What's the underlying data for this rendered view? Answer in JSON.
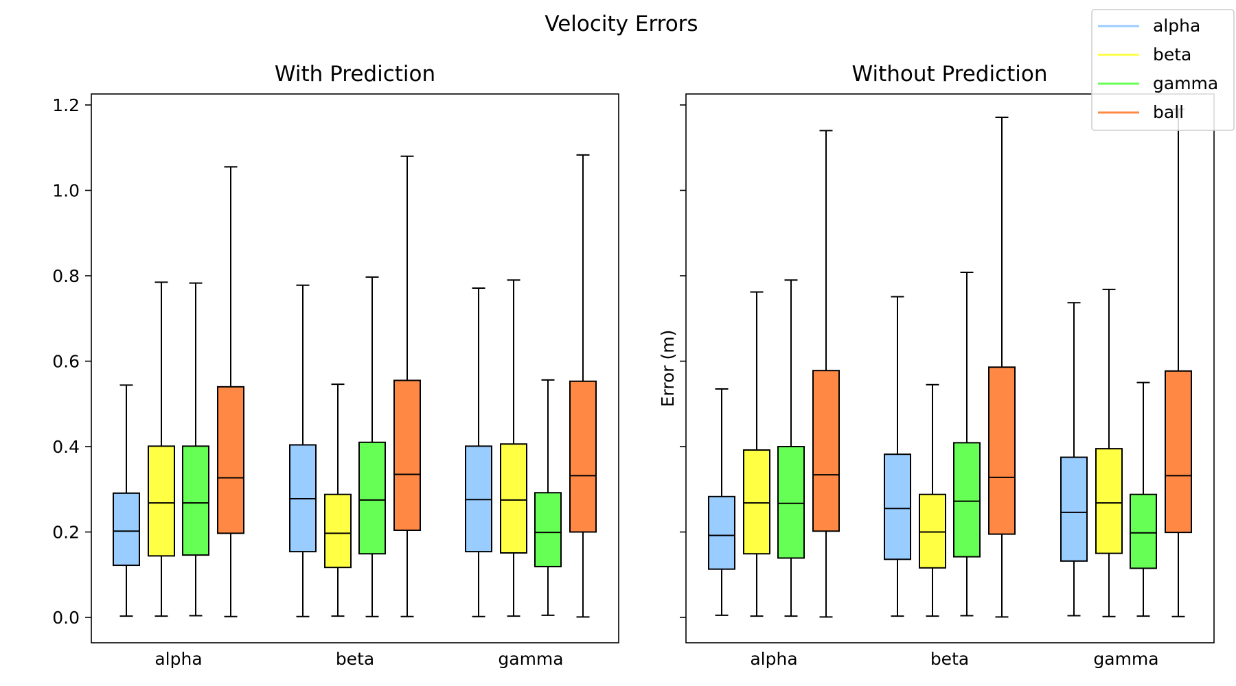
{
  "chart_data": {
    "type": "boxplot",
    "title": "Velocity Errors",
    "ylabel": "Error (m)",
    "ylim": [
      -0.06,
      1.23
    ],
    "yticks": [
      "0.0",
      "0.2",
      "0.4",
      "0.6",
      "0.8",
      "1.0",
      "1.2"
    ],
    "ytick_values": [
      0.0,
      0.2,
      0.4,
      0.6,
      0.8,
      1.0,
      1.2
    ],
    "grid": false,
    "legend_position": "top-right",
    "series": [
      {
        "name": "alpha",
        "color": "#99ccff"
      },
      {
        "name": "beta",
        "color": "#ffff44"
      },
      {
        "name": "gamma",
        "color": "#66ff55"
      },
      {
        "name": "ball",
        "color": "#ff8844"
      }
    ],
    "panels": [
      {
        "title": "With Prediction",
        "categories": [
          "alpha",
          "beta",
          "gamma"
        ],
        "groups": [
          {
            "category": "alpha",
            "boxes": [
              {
                "series": "alpha",
                "whislo": 0.003,
                "q1": 0.122,
                "med": 0.202,
                "q3": 0.291,
                "whishi": 0.544
              },
              {
                "series": "beta",
                "whislo": 0.003,
                "q1": 0.144,
                "med": 0.268,
                "q3": 0.401,
                "whishi": 0.785
              },
              {
                "series": "gamma",
                "whislo": 0.004,
                "q1": 0.146,
                "med": 0.268,
                "q3": 0.401,
                "whishi": 0.783
              },
              {
                "series": "ball",
                "whislo": 0.002,
                "q1": 0.197,
                "med": 0.327,
                "q3": 0.54,
                "whishi": 1.055
              }
            ]
          },
          {
            "category": "beta",
            "boxes": [
              {
                "series": "alpha",
                "whislo": 0.002,
                "q1": 0.154,
                "med": 0.278,
                "q3": 0.404,
                "whishi": 0.778
              },
              {
                "series": "beta",
                "whislo": 0.003,
                "q1": 0.117,
                "med": 0.197,
                "q3": 0.288,
                "whishi": 0.546
              },
              {
                "series": "gamma",
                "whislo": 0.002,
                "q1": 0.149,
                "med": 0.275,
                "q3": 0.41,
                "whishi": 0.797
              },
              {
                "series": "ball",
                "whislo": 0.002,
                "q1": 0.204,
                "med": 0.335,
                "q3": 0.555,
                "whishi": 1.08
              }
            ]
          },
          {
            "category": "gamma",
            "boxes": [
              {
                "series": "alpha",
                "whislo": 0.002,
                "q1": 0.154,
                "med": 0.276,
                "q3": 0.401,
                "whishi": 0.771
              },
              {
                "series": "beta",
                "whislo": 0.003,
                "q1": 0.151,
                "med": 0.275,
                "q3": 0.406,
                "whishi": 0.79
              },
              {
                "series": "gamma",
                "whislo": 0.005,
                "q1": 0.119,
                "med": 0.199,
                "q3": 0.292,
                "whishi": 0.556
              },
              {
                "series": "ball",
                "whislo": 0.001,
                "q1": 0.2,
                "med": 0.332,
                "q3": 0.553,
                "whishi": 1.083
              }
            ]
          }
        ]
      },
      {
        "title": "Without Prediction",
        "categories": [
          "alpha",
          "beta",
          "gamma"
        ],
        "groups": [
          {
            "category": "alpha",
            "boxes": [
              {
                "series": "alpha",
                "whislo": 0.005,
                "q1": 0.113,
                "med": 0.192,
                "q3": 0.283,
                "whishi": 0.535
              },
              {
                "series": "beta",
                "whislo": 0.003,
                "q1": 0.149,
                "med": 0.268,
                "q3": 0.392,
                "whishi": 0.762
              },
              {
                "series": "gamma",
                "whislo": 0.003,
                "q1": 0.139,
                "med": 0.267,
                "q3": 0.4,
                "whishi": 0.79
              },
              {
                "series": "ball",
                "whislo": 0.001,
                "q1": 0.202,
                "med": 0.334,
                "q3": 0.578,
                "whishi": 1.14
              }
            ]
          },
          {
            "category": "beta",
            "boxes": [
              {
                "series": "alpha",
                "whislo": 0.003,
                "q1": 0.136,
                "med": 0.255,
                "q3": 0.382,
                "whishi": 0.751
              },
              {
                "series": "beta",
                "whislo": 0.003,
                "q1": 0.116,
                "med": 0.2,
                "q3": 0.288,
                "whishi": 0.545
              },
              {
                "series": "gamma",
                "whislo": 0.004,
                "q1": 0.142,
                "med": 0.272,
                "q3": 0.409,
                "whishi": 0.808
              },
              {
                "series": "ball",
                "whislo": 0.001,
                "q1": 0.195,
                "med": 0.328,
                "q3": 0.586,
                "whishi": 1.171
              }
            ]
          },
          {
            "category": "gamma",
            "boxes": [
              {
                "series": "alpha",
                "whislo": 0.004,
                "q1": 0.132,
                "med": 0.246,
                "q3": 0.375,
                "whishi": 0.737
              },
              {
                "series": "beta",
                "whislo": 0.002,
                "q1": 0.15,
                "med": 0.268,
                "q3": 0.395,
                "whishi": 0.768
              },
              {
                "series": "gamma",
                "whislo": 0.003,
                "q1": 0.115,
                "med": 0.198,
                "q3": 0.288,
                "whishi": 0.55
              },
              {
                "series": "ball",
                "whislo": 0.002,
                "q1": 0.199,
                "med": 0.332,
                "q3": 0.577,
                "whishi": 1.19
              }
            ]
          }
        ]
      }
    ]
  }
}
